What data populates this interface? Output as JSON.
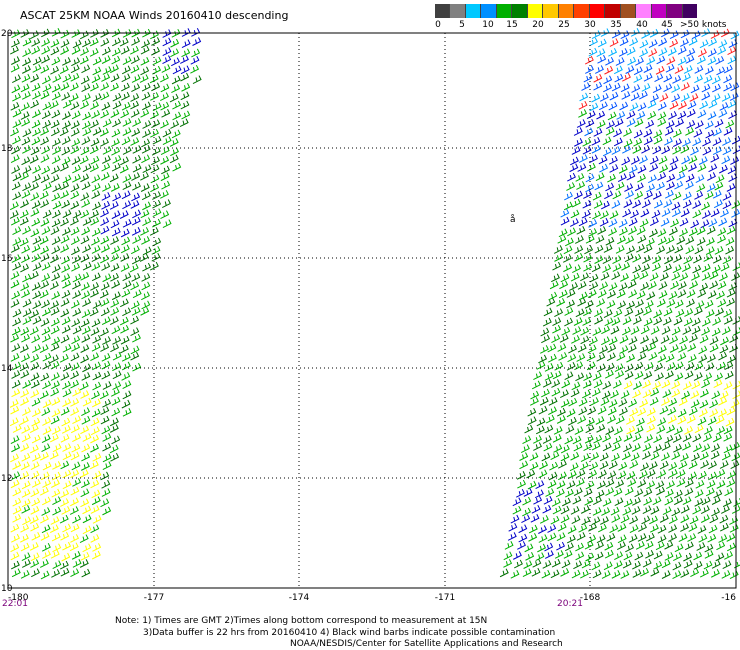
{
  "title": "ASCAT 25KM NOAA Winds 20160410 descending",
  "legend": {
    "labels": [
      "0",
      "5",
      "10",
      "15",
      "20",
      "25",
      "30",
      "35",
      "40",
      "45",
      ">50 knots"
    ],
    "colors": [
      "#404040",
      "#808080",
      "#00c8ff",
      "#0090ff",
      "#00b000",
      "#008000",
      "#ffff00",
      "#ffc800",
      "#ff8000",
      "#ff4000",
      "#ff0000",
      "#c00000",
      "#a05020",
      "#ff80ff",
      "#c000c0",
      "#800080",
      "#400060"
    ]
  },
  "map": {
    "x_ticks": [
      "-180",
      "-177",
      "-174",
      "-171",
      "-168",
      "-16"
    ],
    "y_ticks": [
      "20",
      "18",
      "16",
      "14",
      "12",
      "10"
    ],
    "lon_range": [
      -180,
      -165
    ],
    "lat_range": [
      10,
      20
    ]
  },
  "times": {
    "left": "22:01",
    "right": "20:21"
  },
  "notes": {
    "line1": "Note: 1) Times are GMT 2)Times along bottom correspond to measurement at 15N",
    "line2": "3)Data buffer is 22 hrs from 20160410 4) Black wind barbs indicate possible contamination",
    "line3": "NOAA/NESDIS/Center for Satellite Applications and Research"
  },
  "land_label": "å"
}
